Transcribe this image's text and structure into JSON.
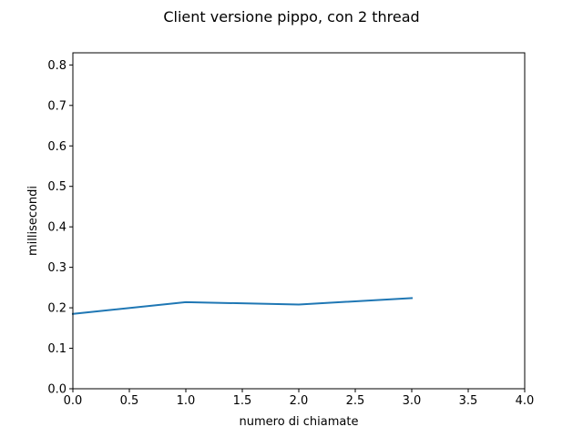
{
  "chart_data": {
    "type": "line",
    "title": "Client versione pippo, con 2 thread",
    "xlabel": "numero di chiamate",
    "ylabel": "millisecondi",
    "xlim": [
      0,
      4
    ],
    "ylim": [
      0,
      0.83
    ],
    "xticks": [
      0,
      0.5,
      1,
      1.5,
      2,
      2.5,
      3,
      3.5,
      4
    ],
    "xtick_labels": [
      "0.0",
      "0.5",
      "1.0",
      "1.5",
      "2.0",
      "2.5",
      "3.0",
      "3.5",
      "4.0"
    ],
    "yticks": [
      0,
      0.1,
      0.2,
      0.3,
      0.4,
      0.5,
      0.6,
      0.7,
      0.8
    ],
    "ytick_labels": [
      "0.0",
      "0.1",
      "0.2",
      "0.3",
      "0.4",
      "0.5",
      "0.6",
      "0.7",
      "0.8"
    ],
    "grid": false,
    "legend": "none",
    "series": [
      {
        "x": [
          0,
          1,
          2,
          3
        ],
        "values": [
          0.185,
          0.214,
          0.208,
          0.224
        ],
        "color": "#1f77b4"
      }
    ]
  }
}
